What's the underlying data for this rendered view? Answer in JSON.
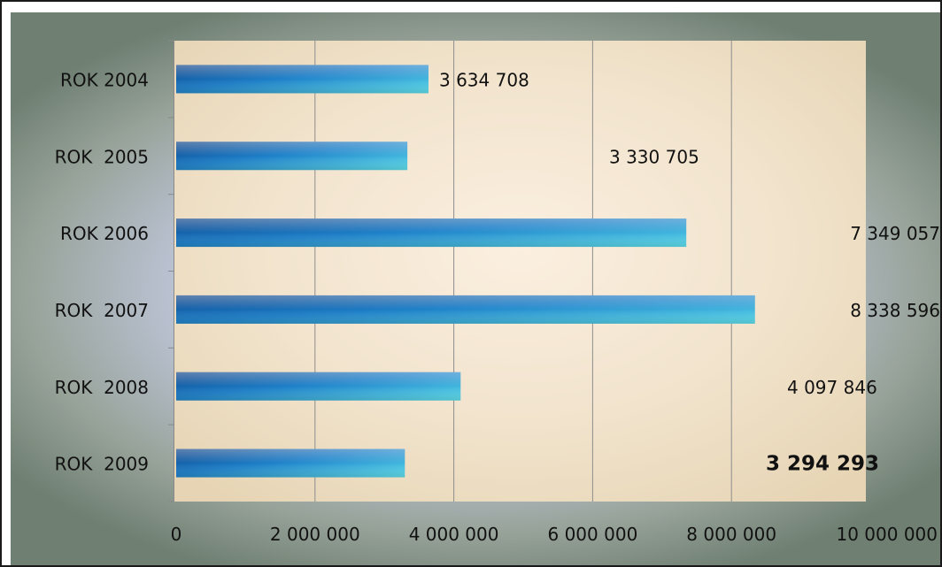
{
  "chart_data": {
    "type": "bar",
    "orientation": "horizontal",
    "categories": [
      "ROK 2004",
      "ROK  2005",
      "ROK 2006",
      "ROK  2007",
      "ROK  2008",
      "ROK  2009"
    ],
    "values": [
      3634708,
      3330705,
      7349057,
      8338596,
      4097846,
      3294293
    ],
    "data_labels": [
      "3 634 708",
      "3 330 705",
      "7 349 057",
      "8 338 596",
      "4 097 846",
      "3 294 293"
    ],
    "x_ticks": [
      0,
      2000000,
      4000000,
      6000000,
      8000000,
      10000000
    ],
    "x_tick_labels": [
      "0",
      "2 000 000",
      "4 000 000",
      "6 000 000",
      "8 000 000",
      "10 000 000"
    ],
    "xlim": [
      0,
      10000000
    ],
    "title": "",
    "xlabel": "",
    "ylabel": "",
    "grid": "vertical",
    "legend": "none",
    "colors": {
      "bar_dark": "#0a3f86",
      "bar_mid": "#1d7fc8",
      "bar_light": "#5fe3f0",
      "plot_light": "#fbefe0",
      "plot_tan": "#e6d4b4",
      "gridline": "#8e8e8e",
      "text": "#111111"
    }
  }
}
